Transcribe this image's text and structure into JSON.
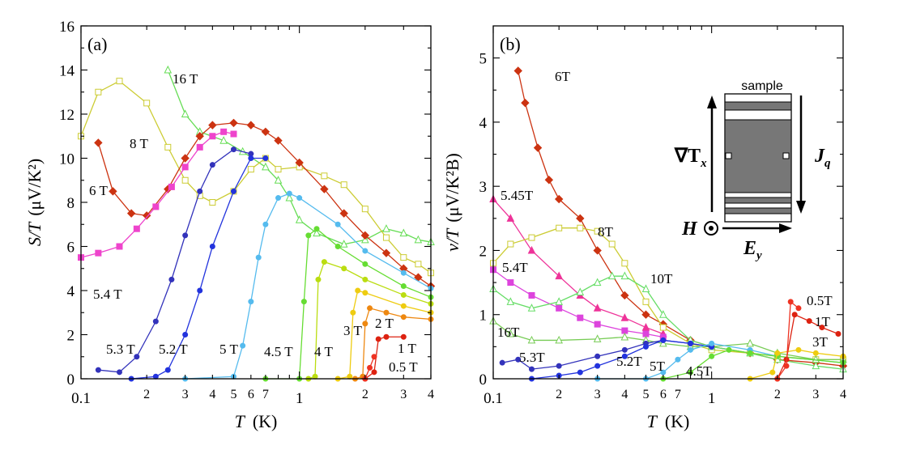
{
  "chart_data": [
    {
      "type": "line",
      "panel_label": "(a)",
      "ylabel_italic": "S/T",
      "ylabel_units": "(μV/K²)",
      "xlabel_italic": "T",
      "xlabel_units": "(K)",
      "xscale": "log",
      "xlim": [
        0.1,
        4
      ],
      "ylim": [
        0,
        16
      ],
      "y_ticks": [
        "0",
        "2",
        "4",
        "6",
        "8",
        "10",
        "12",
        "14",
        "16"
      ],
      "x_major_ticks": [
        "0.1",
        "1"
      ],
      "x_minor_tick_labels": [
        "2",
        "3",
        "4",
        "5",
        "6",
        "7",
        "2",
        "3",
        "4"
      ],
      "series": [
        {
          "name": "16 T",
          "color": "#66dd55",
          "marker": "triangle-open",
          "x": [
            0.25,
            0.3,
            0.35,
            0.45,
            0.55,
            0.7,
            0.8,
            0.9,
            1.0,
            1.2,
            1.6,
            2.0,
            2.5,
            3.0,
            3.5,
            4.0
          ],
          "y": [
            14.0,
            12.0,
            11.2,
            10.8,
            10.3,
            9.6,
            9.0,
            8.2,
            7.2,
            6.6,
            6.1,
            6.3,
            6.8,
            6.6,
            6.3,
            6.2
          ]
        },
        {
          "name": "8 T",
          "color": "#cccc33",
          "marker": "square-open",
          "x": [
            0.1,
            0.12,
            0.15,
            0.2,
            0.25,
            0.3,
            0.35,
            0.4,
            0.5,
            0.6,
            0.7,
            0.8,
            1.0,
            1.3,
            1.6,
            2.0,
            2.5,
            3.0,
            3.5,
            4.0
          ],
          "y": [
            11.0,
            13.0,
            13.5,
            12.5,
            10.5,
            9.0,
            8.3,
            8.0,
            8.5,
            9.5,
            10.0,
            9.5,
            9.6,
            9.2,
            8.8,
            7.7,
            6.4,
            5.5,
            5.2,
            4.8
          ]
        },
        {
          "name": "6 T",
          "color": "#cc3311",
          "marker": "diamond",
          "x": [
            0.12,
            0.14,
            0.17,
            0.2,
            0.25,
            0.3,
            0.35,
            0.4,
            0.5,
            0.6,
            0.7,
            0.8,
            1.0,
            1.3,
            1.6,
            2.0,
            2.5,
            3.0,
            3.5,
            4.0
          ],
          "y": [
            10.7,
            8.5,
            7.5,
            7.4,
            8.6,
            10.0,
            11.0,
            11.5,
            11.6,
            11.5,
            11.2,
            10.8,
            9.8,
            8.6,
            7.5,
            6.5,
            5.7,
            5.0,
            4.6,
            4.2
          ]
        },
        {
          "name": "5.4 T",
          "color": "#ee44cc",
          "marker": "square",
          "x": [
            0.1,
            0.12,
            0.15,
            0.18,
            0.22,
            0.26,
            0.3,
            0.35,
            0.4,
            0.45,
            0.5
          ],
          "y": [
            5.5,
            5.7,
            6.0,
            6.8,
            7.8,
            8.7,
            9.6,
            10.5,
            11.0,
            11.2,
            11.1
          ]
        },
        {
          "name": "5.3 T",
          "color": "#3333bb",
          "marker": "circle",
          "x": [
            0.12,
            0.15,
            0.18,
            0.22,
            0.26,
            0.3,
            0.35,
            0.4,
            0.5,
            0.6
          ],
          "y": [
            0.4,
            0.3,
            1.0,
            2.6,
            4.5,
            6.5,
            8.5,
            9.7,
            10.4,
            10.2
          ]
        },
        {
          "name": "5.2 T",
          "color": "#2233dd",
          "marker": "circle",
          "x": [
            0.17,
            0.22,
            0.25,
            0.3,
            0.35,
            0.4,
            0.5,
            0.6,
            0.7
          ],
          "y": [
            0.0,
            0.1,
            0.4,
            2.0,
            4.0,
            6.0,
            8.5,
            10.0,
            10.0
          ]
        },
        {
          "name": "5 T",
          "color": "#55bbee",
          "marker": "circle",
          "x": [
            0.3,
            0.5,
            0.55,
            0.6,
            0.65,
            0.7,
            0.8,
            0.9,
            1.0,
            1.5,
            2.0,
            3.0,
            4.0
          ],
          "y": [
            0.0,
            0.1,
            1.5,
            3.5,
            5.5,
            7.0,
            8.2,
            8.4,
            8.2,
            7.0,
            5.8,
            4.8,
            4.1
          ]
        },
        {
          "name": "4.5 T",
          "color": "#66dd33",
          "marker": "circle",
          "x": [
            0.7,
            1.0,
            1.05,
            1.1,
            1.2,
            1.5,
            2.0,
            3.0,
            4.0
          ],
          "y": [
            0.0,
            0.0,
            3.5,
            6.5,
            6.8,
            6.0,
            5.2,
            4.2,
            3.7
          ]
        },
        {
          "name": "4 T",
          "color": "#bbdd11",
          "marker": "circle",
          "x": [
            1.1,
            1.18,
            1.22,
            1.3,
            1.6,
            2.0,
            3.0,
            4.0
          ],
          "y": [
            0.0,
            0.1,
            4.5,
            5.3,
            5.0,
            4.5,
            3.8,
            3.4
          ]
        },
        {
          "name": "3 T",
          "color": "#eecc11",
          "marker": "circle",
          "x": [
            1.5,
            1.7,
            1.76,
            1.85,
            2.0,
            3.0,
            4.0
          ],
          "y": [
            0.0,
            0.1,
            3.0,
            4.0,
            3.9,
            3.3,
            3.0
          ]
        },
        {
          "name": "2 T",
          "color": "#ee8811",
          "marker": "circle",
          "x": [
            1.8,
            1.95,
            2.0,
            2.1,
            2.5,
            3.0,
            4.0
          ],
          "y": [
            0.0,
            0.1,
            2.5,
            3.2,
            3.0,
            2.8,
            2.7
          ]
        },
        {
          "name": "1 T",
          "color": "#dd2211",
          "marker": "circle",
          "x": [
            2.0,
            2.2,
            2.3,
            2.5,
            3.0
          ],
          "y": [
            0.0,
            0.3,
            1.8,
            1.9,
            1.9
          ]
        },
        {
          "name": "0.5 T",
          "color": "#ee3322",
          "marker": "circle",
          "x": [
            2.0,
            2.1,
            2.2
          ],
          "y": [
            0.0,
            0.5,
            1.0
          ]
        }
      ],
      "annotations": [
        "16 T",
        "8 T",
        "6 T",
        "5.4 T",
        "5.3 T",
        "5.2 T",
        "5 T",
        "4.5 T",
        "4 T",
        "3 T",
        "2 T",
        "1 T",
        "0.5 T"
      ]
    },
    {
      "type": "line",
      "panel_label": "(b)",
      "ylabel_italic": "ν/T",
      "ylabel_units": "(μV/K²B)",
      "xlabel_italic": "T",
      "xlabel_units": "(K)",
      "xscale": "log",
      "xlim": [
        0.1,
        4
      ],
      "ylim": [
        0,
        5.5
      ],
      "y_ticks": [
        "0",
        "1",
        "2",
        "3",
        "4",
        "5"
      ],
      "x_major_ticks": [
        "0.1",
        "1"
      ],
      "x_minor_tick_labels": [
        "2",
        "3",
        "4",
        "5",
        "6",
        "7",
        "2",
        "3",
        "4"
      ],
      "series": [
        {
          "name": "6T",
          "color": "#cc3311",
          "marker": "diamond",
          "x": [
            0.13,
            0.14,
            0.16,
            0.18,
            0.2,
            0.25,
            0.3,
            0.4,
            0.5,
            0.6,
            0.8,
            1.0,
            1.5,
            2.0,
            3.0,
            4.0
          ],
          "y": [
            4.8,
            4.3,
            3.6,
            3.1,
            2.8,
            2.5,
            2.0,
            1.3,
            1.0,
            0.85,
            0.6,
            0.5,
            0.4,
            0.3,
            0.25,
            0.2
          ]
        },
        {
          "name": "5.45T",
          "color": "#ee3399",
          "marker": "triangle",
          "x": [
            0.1,
            0.12,
            0.15,
            0.2,
            0.25,
            0.3,
            0.4,
            0.5,
            0.6
          ],
          "y": [
            2.8,
            2.5,
            2.0,
            1.6,
            1.3,
            1.1,
            0.95,
            0.8,
            0.7
          ]
        },
        {
          "name": "8T",
          "color": "#cccc33",
          "marker": "square-open",
          "x": [
            0.1,
            0.12,
            0.15,
            0.2,
            0.25,
            0.3,
            0.35,
            0.4,
            0.5,
            0.6,
            0.8,
            1.0,
            1.5,
            2.0,
            3.0,
            4.0
          ],
          "y": [
            1.8,
            2.1,
            2.2,
            2.35,
            2.35,
            2.3,
            2.1,
            1.8,
            1.2,
            0.8,
            0.55,
            0.45,
            0.4,
            0.35,
            0.3,
            0.3
          ]
        },
        {
          "name": "5.4T",
          "color": "#dd44dd",
          "marker": "square",
          "x": [
            0.1,
            0.12,
            0.15,
            0.2,
            0.25,
            0.3,
            0.4,
            0.5,
            0.6
          ],
          "y": [
            1.7,
            1.5,
            1.3,
            1.1,
            0.95,
            0.85,
            0.75,
            0.7,
            0.65
          ]
        },
        {
          "name": "10T",
          "color": "#66dd66",
          "marker": "triangle-open",
          "x": [
            0.1,
            0.12,
            0.15,
            0.2,
            0.25,
            0.3,
            0.35,
            0.4,
            0.5,
            0.6,
            0.8,
            1.0,
            1.5,
            2.0,
            3.0,
            4.0
          ],
          "y": [
            1.4,
            1.2,
            1.1,
            1.2,
            1.35,
            1.5,
            1.6,
            1.6,
            1.4,
            1.0,
            0.6,
            0.5,
            0.4,
            0.3,
            0.2,
            0.15
          ]
        },
        {
          "name": "16T",
          "color": "#77cc55",
          "marker": "triangle-open",
          "x": [
            0.1,
            0.12,
            0.15,
            0.2,
            0.3,
            0.4,
            0.5,
            0.6,
            0.8,
            1.0,
            1.5,
            2.0,
            3.0,
            4.0
          ],
          "y": [
            0.9,
            0.7,
            0.6,
            0.6,
            0.62,
            0.65,
            0.6,
            0.55,
            0.5,
            0.5,
            0.55,
            0.4,
            0.3,
            0.3
          ]
        },
        {
          "name": "5.3T",
          "color": "#3333bb",
          "marker": "circle",
          "x": [
            0.11,
            0.13,
            0.15,
            0.2,
            0.3,
            0.4,
            0.5,
            0.6,
            0.8,
            1.0
          ],
          "y": [
            0.25,
            0.3,
            0.15,
            0.2,
            0.35,
            0.45,
            0.55,
            0.6,
            0.55,
            0.5
          ]
        },
        {
          "name": "5.2T",
          "color": "#2233dd",
          "marker": "circle",
          "x": [
            0.15,
            0.2,
            0.25,
            0.3,
            0.4,
            0.5,
            0.6,
            0.8,
            1.0
          ],
          "y": [
            0.0,
            0.05,
            0.1,
            0.2,
            0.35,
            0.5,
            0.6,
            0.55,
            0.5
          ]
        },
        {
          "name": "5T",
          "color": "#55bbee",
          "marker": "circle",
          "x": [
            0.3,
            0.5,
            0.6,
            0.7,
            0.8,
            1.0,
            1.5,
            2.0,
            4.0
          ],
          "y": [
            0.0,
            0.0,
            0.1,
            0.3,
            0.45,
            0.55,
            0.45,
            0.35,
            0.25
          ]
        },
        {
          "name": "4.5T",
          "color": "#66dd33",
          "marker": "circle",
          "x": [
            0.6,
            0.8,
            1.0,
            1.2,
            1.5,
            2.0,
            4.0
          ],
          "y": [
            0.0,
            0.1,
            0.35,
            0.45,
            0.4,
            0.35,
            0.25
          ]
        },
        {
          "name": "3T",
          "color": "#eecc11",
          "marker": "circle",
          "x": [
            1.5,
            1.9,
            2.0,
            2.5,
            3.0,
            4.0
          ],
          "y": [
            0.0,
            0.1,
            0.4,
            0.45,
            0.4,
            0.35
          ]
        },
        {
          "name": "1T",
          "color": "#dd2211",
          "marker": "circle",
          "x": [
            2.0,
            2.2,
            2.4,
            2.8,
            3.2,
            3.8
          ],
          "y": [
            0.0,
            0.3,
            1.0,
            0.9,
            0.8,
            0.7
          ]
        },
        {
          "name": "0.5T",
          "color": "#ee3322",
          "marker": "circle",
          "x": [
            2.0,
            2.2,
            2.3,
            2.5
          ],
          "y": [
            0.0,
            0.2,
            1.2,
            1.1
          ]
        }
      ],
      "annotations": [
        "6T",
        "5.45T",
        "8T",
        "5.4T",
        "10T",
        "16T",
        "5.3T",
        "5.2T",
        "5T",
        "4.5T",
        "3T",
        "1T",
        "0.5T"
      ],
      "inset": {
        "title": "sample",
        "grad_label": "∇T",
        "grad_sub": "x",
        "current_label": "J",
        "current_sub": "q",
        "field_label": "H",
        "efield_label": "E",
        "efield_sub": "y"
      }
    }
  ]
}
